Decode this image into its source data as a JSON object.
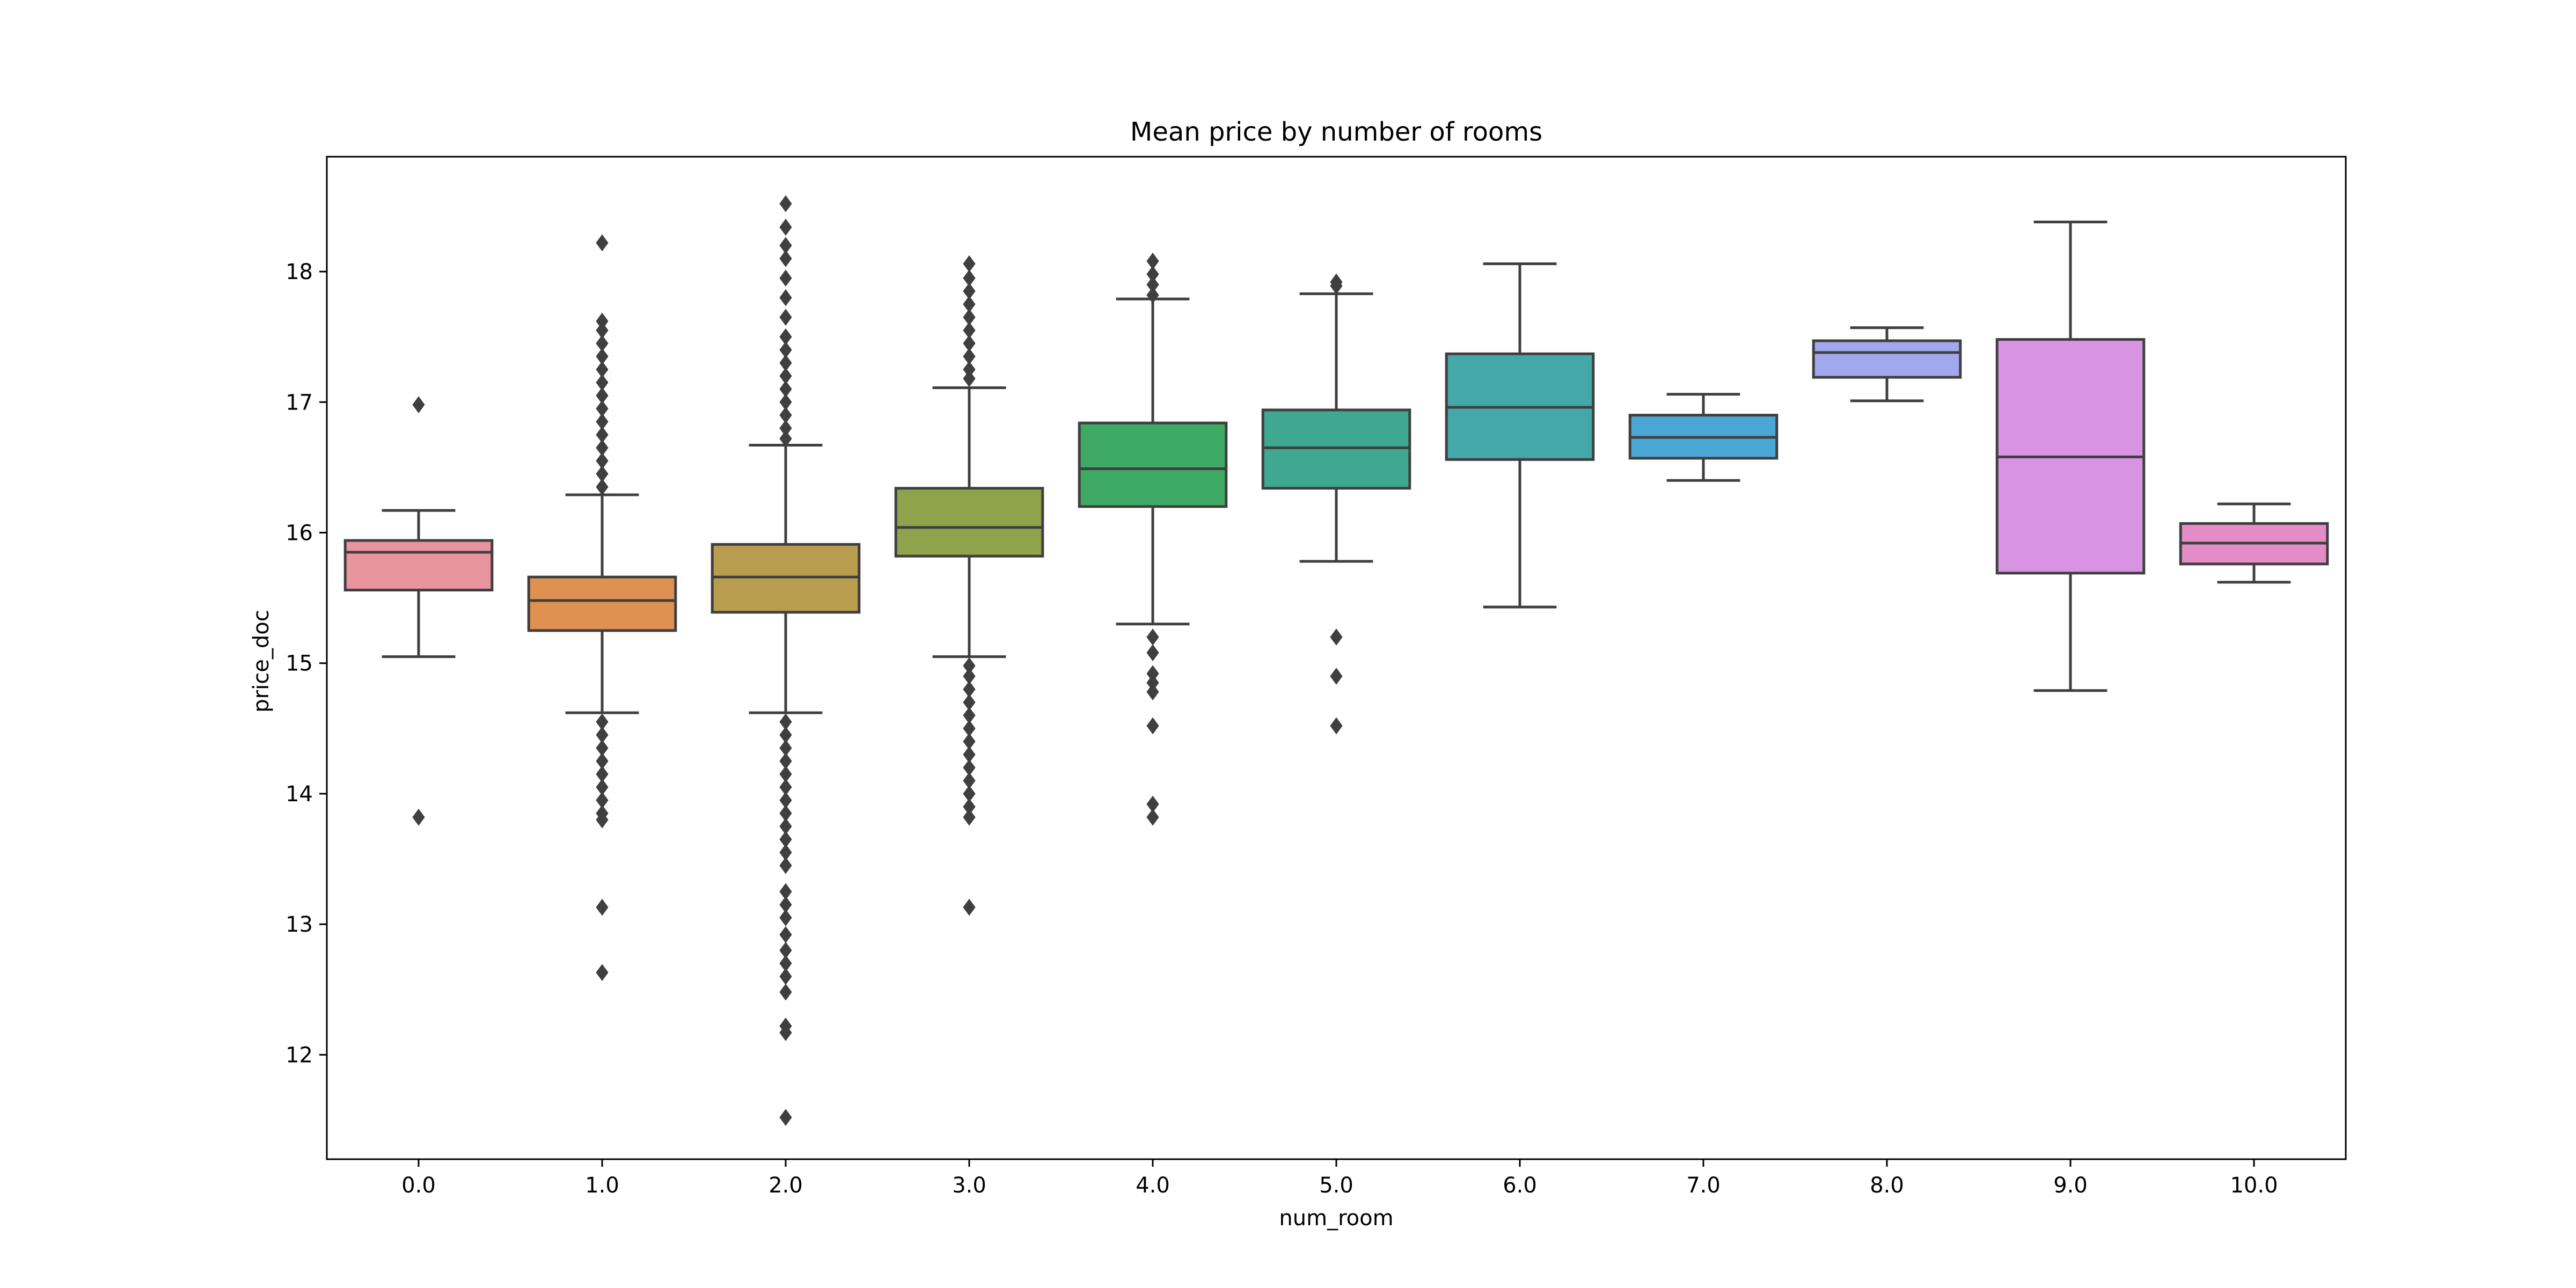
{
  "chart_data": {
    "type": "box",
    "title": "Mean price by number of rooms",
    "xlabel": "num_room",
    "ylabel": "price_doc",
    "ylim": [
      11.2,
      18.88
    ],
    "yticks": [
      12,
      13,
      14,
      15,
      16,
      17,
      18
    ],
    "categories": [
      "0.0",
      "1.0",
      "2.0",
      "3.0",
      "4.0",
      "5.0",
      "6.0",
      "7.0",
      "8.0",
      "9.0",
      "10.0"
    ],
    "grid": false,
    "legend": "none",
    "boxes": [
      {
        "category": "0.0",
        "color": "#e8949f",
        "q1": 15.56,
        "median": 15.85,
        "q3": 15.94,
        "whisker_low": 15.05,
        "whisker_high": 16.17,
        "outliers": [
          16.98,
          13.82
        ]
      },
      {
        "category": "1.0",
        "color": "#de9150",
        "q1": 15.25,
        "median": 15.48,
        "q3": 15.66,
        "whisker_low": 14.62,
        "whisker_high": 16.29,
        "outliers": [
          18.22,
          17.62,
          17.55,
          17.45,
          17.35,
          17.25,
          17.15,
          17.05,
          16.95,
          16.85,
          16.75,
          16.65,
          16.55,
          16.45,
          16.35,
          14.55,
          14.45,
          14.35,
          14.25,
          14.15,
          14.05,
          13.95,
          13.85,
          13.8,
          13.13,
          12.63
        ]
      },
      {
        "category": "2.0",
        "color": "#b99d4f",
        "q1": 15.39,
        "median": 15.66,
        "q3": 15.91,
        "whisker_low": 14.62,
        "whisker_high": 16.67,
        "outliers": [
          18.52,
          18.34,
          18.2,
          18.1,
          17.95,
          17.8,
          17.65,
          17.5,
          17.4,
          17.3,
          17.2,
          17.1,
          17.0,
          16.9,
          16.8,
          16.72,
          14.55,
          14.45,
          14.35,
          14.25,
          14.15,
          14.05,
          13.95,
          13.85,
          13.75,
          13.65,
          13.55,
          13.45,
          13.25,
          13.15,
          13.05,
          12.92,
          12.8,
          12.7,
          12.6,
          12.48,
          12.22,
          12.17,
          11.52
        ]
      },
      {
        "category": "3.0",
        "color": "#8ea34b",
        "q1": 15.82,
        "median": 16.04,
        "q3": 16.34,
        "whisker_low": 15.05,
        "whisker_high": 17.11,
        "outliers": [
          18.06,
          17.95,
          17.85,
          17.75,
          17.65,
          17.55,
          17.45,
          17.35,
          17.25,
          17.18,
          14.98,
          14.9,
          14.8,
          14.7,
          14.6,
          14.5,
          14.4,
          14.3,
          14.2,
          14.1,
          14.0,
          13.9,
          13.82,
          13.13
        ]
      },
      {
        "category": "4.0",
        "color": "#3eaa64",
        "q1": 16.2,
        "median": 16.49,
        "q3": 16.84,
        "whisker_low": 15.3,
        "whisker_high": 17.79,
        "outliers": [
          18.08,
          17.98,
          17.9,
          17.82,
          15.2,
          15.08,
          14.92,
          14.85,
          14.78,
          14.52,
          13.92,
          13.82
        ]
      },
      {
        "category": "5.0",
        "color": "#3ea890",
        "q1": 16.34,
        "median": 16.65,
        "q3": 16.94,
        "whisker_low": 15.78,
        "whisker_high": 17.83,
        "outliers": [
          17.92,
          17.89,
          15.2,
          14.9,
          14.52
        ]
      },
      {
        "category": "6.0",
        "color": "#44a8ab",
        "q1": 16.56,
        "median": 16.96,
        "q3": 17.37,
        "whisker_low": 15.43,
        "whisker_high": 18.06,
        "outliers": []
      },
      {
        "category": "7.0",
        "color": "#4aa7d3",
        "q1": 16.57,
        "median": 16.73,
        "q3": 16.9,
        "whisker_low": 16.4,
        "whisker_high": 17.06,
        "outliers": []
      },
      {
        "category": "8.0",
        "color": "#a1a9ec",
        "q1": 17.19,
        "median": 17.38,
        "q3": 17.47,
        "whisker_low": 17.01,
        "whisker_high": 17.57,
        "outliers": []
      },
      {
        "category": "9.0",
        "color": "#d894e3",
        "q1": 15.69,
        "median": 16.58,
        "q3": 17.48,
        "whisker_low": 14.79,
        "whisker_high": 18.38,
        "outliers": []
      },
      {
        "category": "10.0",
        "color": "#e48cc7",
        "q1": 15.76,
        "median": 15.92,
        "q3": 16.07,
        "whisker_low": 15.62,
        "whisker_high": 16.22,
        "outliers": []
      }
    ]
  }
}
